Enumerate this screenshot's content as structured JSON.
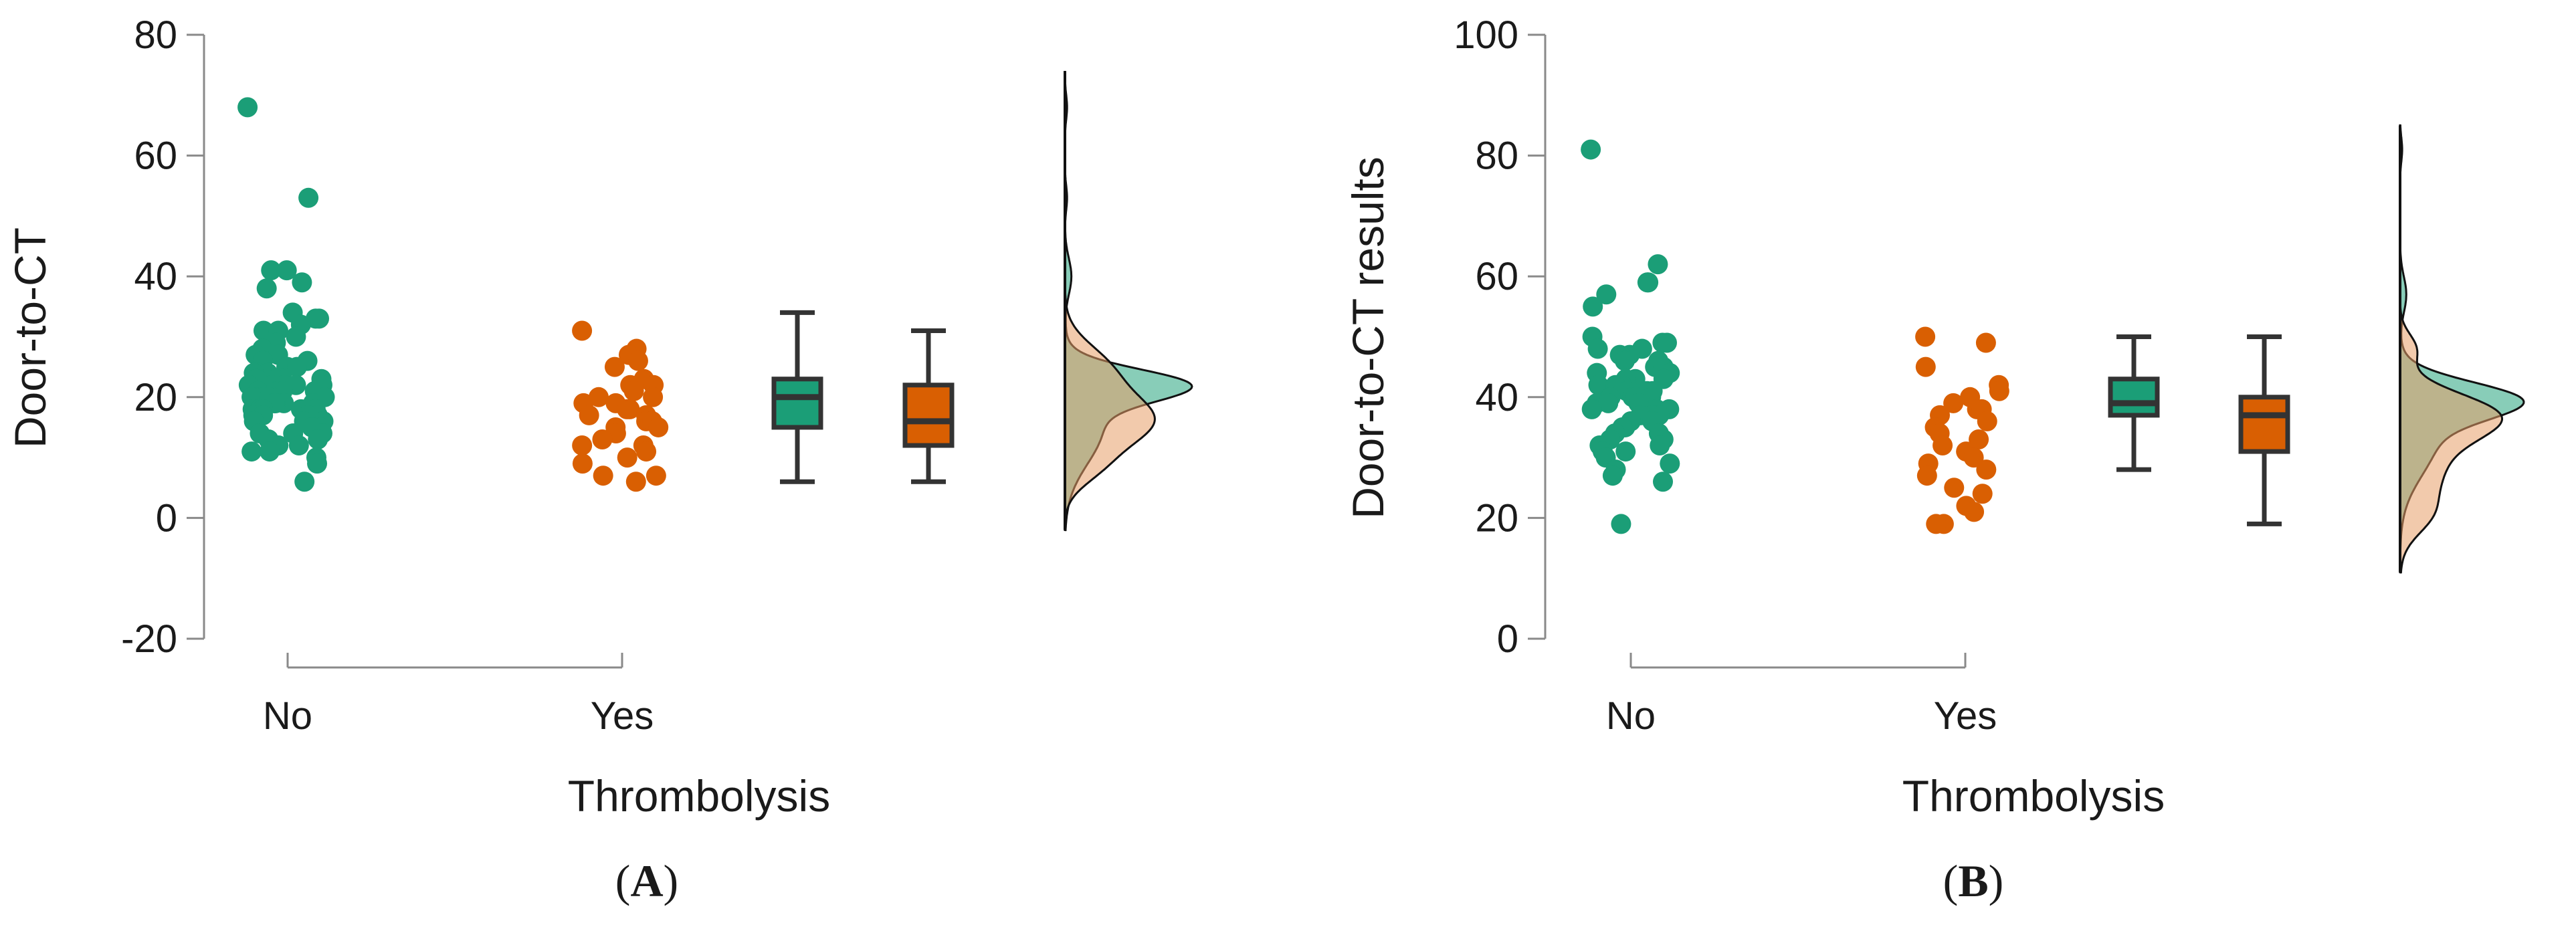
{
  "chart_data": [
    {
      "type": "raincloud",
      "panel_label": "A",
      "ylabel": "Door-to-CT",
      "xlabel": "Thrombolysis",
      "ylim": [
        -20,
        80
      ],
      "yticks": [
        "-20",
        "0",
        "20",
        "40",
        "60",
        "80"
      ],
      "categories": [
        "No",
        "Yes"
      ],
      "series": [
        {
          "name": "No",
          "color": "#1b9e77",
          "points": [
            68,
            53,
            41,
            41,
            39,
            38,
            34,
            33,
            33,
            32,
            31,
            31,
            30,
            29,
            28,
            27,
            27,
            26,
            26,
            25,
            25,
            25,
            24,
            24,
            24,
            23,
            23,
            23,
            23,
            22,
            22,
            22,
            22,
            22,
            21,
            21,
            21,
            21,
            21,
            21,
            20,
            20,
            20,
            20,
            20,
            20,
            20,
            19,
            19,
            19,
            19,
            19,
            18,
            18,
            18,
            18,
            18,
            17,
            17,
            17,
            17,
            16,
            16,
            16,
            16,
            15,
            15,
            15,
            14,
            14,
            14,
            13,
            13,
            12,
            12,
            11,
            11,
            10,
            9,
            6
          ],
          "box": {
            "min": 6,
            "q1": 15,
            "median": 20,
            "q3": 23,
            "max": 34
          }
        },
        {
          "name": "Yes",
          "color": "#d95f02",
          "points": [
            31,
            28,
            27,
            26,
            25,
            23,
            22,
            22,
            21,
            20,
            20,
            19,
            19,
            18,
            18,
            17,
            17,
            16,
            16,
            15,
            15,
            14,
            13,
            12,
            12,
            11,
            10,
            9,
            7,
            7,
            6
          ],
          "box": {
            "min": 6,
            "q1": 12,
            "median": 16,
            "q3": 22,
            "max": 31
          }
        }
      ],
      "density_range": [
        -2,
        74
      ],
      "density_peaks": {
        "No": 22,
        "Yes": 16
      }
    },
    {
      "type": "raincloud",
      "panel_label": "B",
      "ylabel": "Door-to-CT results",
      "xlabel": "Thrombolysis",
      "ylim": [
        0,
        100
      ],
      "yticks": [
        "0",
        "20",
        "40",
        "60",
        "80",
        "100"
      ],
      "categories": [
        "No",
        "Yes"
      ],
      "series": [
        {
          "name": "No",
          "color": "#1b9e77",
          "points": [
            81,
            62,
            59,
            59,
            57,
            55,
            50,
            49,
            49,
            48,
            48,
            47,
            47,
            46,
            46,
            45,
            45,
            44,
            44,
            43,
            43,
            43,
            42,
            42,
            42,
            41,
            41,
            41,
            40,
            40,
            40,
            40,
            39,
            39,
            39,
            38,
            38,
            38,
            37,
            37,
            37,
            36,
            36,
            35,
            35,
            34,
            34,
            33,
            33,
            32,
            32,
            31,
            31,
            30,
            29,
            28,
            27,
            26,
            19
          ],
          "box": {
            "min": 28,
            "q1": 37,
            "median": 39,
            "q3": 43,
            "max": 50
          }
        },
        {
          "name": "Yes",
          "color": "#d95f02",
          "points": [
            50,
            49,
            45,
            42,
            41,
            40,
            39,
            38,
            38,
            37,
            36,
            35,
            34,
            33,
            32,
            31,
            30,
            29,
            28,
            27,
            25,
            24,
            22,
            21,
            19,
            19
          ],
          "box": {
            "min": 19,
            "q1": 31,
            "median": 37,
            "q3": 40,
            "max": 50
          }
        }
      ],
      "density_range": [
        11,
        85
      ],
      "density_peaks": {
        "No": 39,
        "Yes": 37
      }
    }
  ]
}
